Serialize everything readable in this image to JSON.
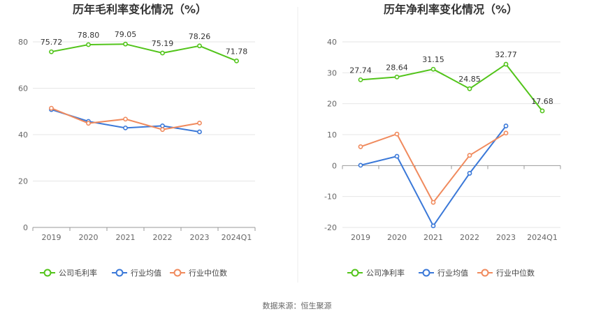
{
  "source": "数据来源：恒生聚源",
  "colors": {
    "company": "#52c41a",
    "avg": "#3a78d8",
    "median": "#f08a5d",
    "axis": "#999999",
    "grid": "#e6e6e6"
  },
  "chart_data": [
    {
      "type": "line",
      "title": "历年毛利率变化情况（%）",
      "categories": [
        "2019",
        "2020",
        "2021",
        "2022",
        "2023",
        "2024Q1"
      ],
      "ylim": [
        0,
        80
      ],
      "yticks": [
        0,
        20,
        40,
        60,
        80
      ],
      "grid": true,
      "legend_position": "bottom",
      "series": [
        {
          "name": "公司毛利率",
          "key": "company",
          "values": [
            75.72,
            78.8,
            79.05,
            75.19,
            78.26,
            71.78
          ],
          "labels": [
            "75.72",
            "78.80",
            "79.05",
            "75.19",
            "78.26",
            "71.78"
          ]
        },
        {
          "name": "行业均值",
          "key": "avg",
          "values": [
            50.8,
            45.7,
            42.9,
            43.8,
            41.2,
            null
          ]
        },
        {
          "name": "行业中位数",
          "key": "median",
          "values": [
            51.4,
            44.9,
            46.7,
            42.2,
            45.0,
            null
          ]
        }
      ]
    },
    {
      "type": "line",
      "title": "历年净利率变化情况（%）",
      "categories": [
        "2019",
        "2020",
        "2021",
        "2022",
        "2023",
        "2024Q1"
      ],
      "ylim": [
        -20,
        40
      ],
      "yticks": [
        -20,
        -10,
        0,
        10,
        20,
        30,
        40
      ],
      "grid": true,
      "legend_position": "bottom",
      "series": [
        {
          "name": "公司净利率",
          "key": "company",
          "values": [
            27.74,
            28.64,
            31.15,
            24.85,
            32.77,
            17.68
          ],
          "labels": [
            "27.74",
            "28.64",
            "31.15",
            "24.85",
            "32.77",
            "17.68"
          ]
        },
        {
          "name": "行业均值",
          "key": "avg",
          "values": [
            0.1,
            3.0,
            -19.5,
            -2.5,
            12.8,
            null
          ]
        },
        {
          "name": "行业中位数",
          "key": "median",
          "values": [
            6.1,
            10.2,
            -11.9,
            3.3,
            10.5,
            null
          ]
        }
      ]
    }
  ]
}
